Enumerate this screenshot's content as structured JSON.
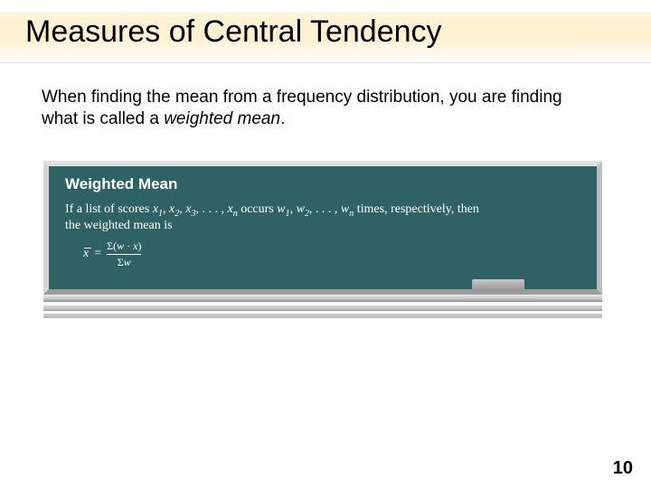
{
  "title": "Measures of Central Tendency",
  "body": {
    "pre": "When finding the mean from a frequency distribution, you are finding what is called a ",
    "emph": "weighted mean",
    "post": "."
  },
  "board": {
    "heading": "Weighted Mean",
    "line1_pre": "If a list of scores ",
    "line1_xs": "x",
    "line1_mid1": ", ",
    "line1_mid2": ", ",
    "line1_mid3": ", . . . , ",
    "line1_mid4": " occurs ",
    "line1_ws": "w",
    "line1_mid5": ", ",
    "line1_mid6": ", . . . , ",
    "line1_post": " times, respectively, then",
    "line2": "the weighted mean is",
    "sub1": "1",
    "sub2": "2",
    "sub3": "3",
    "subn": "n",
    "formula": {
      "lhs": "x",
      "eq": "=",
      "num_pre": "Σ(",
      "num_w": "w",
      "num_dot": " · ",
      "num_x": "x",
      "num_post": ")",
      "den_pre": "Σ",
      "den_w": "w"
    },
    "colors": {
      "board_bg": "#2e6263",
      "board_text": "#ffffff"
    }
  },
  "page_number": "10"
}
